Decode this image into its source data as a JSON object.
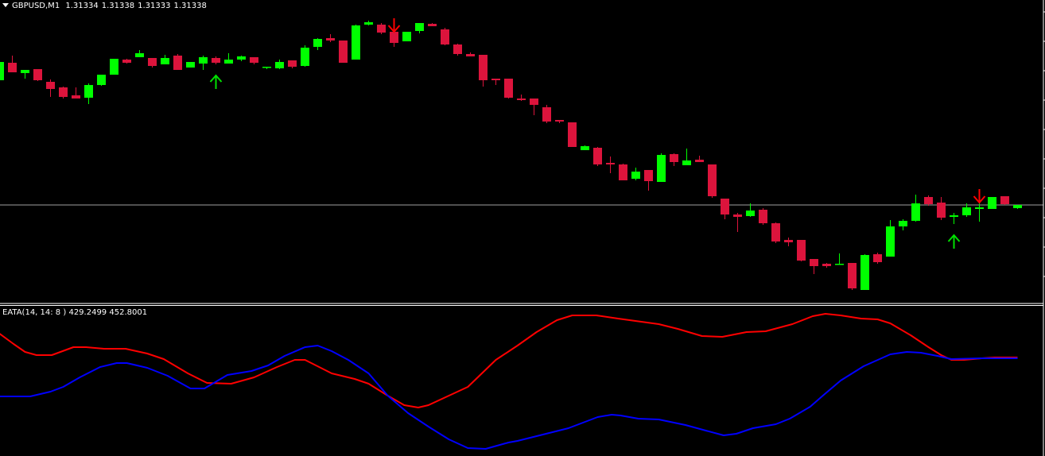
{
  "header": {
    "symbol": "GBPUSD,M1",
    "open": "1.31334",
    "high": "1.31338",
    "low": "1.31333",
    "close": "1.31338"
  },
  "indicator": {
    "label": "EATA(14, 14: 8 )",
    "value1": "429.2499",
    "value2": "452.8001"
  },
  "colors": {
    "background": "#000000",
    "bull": "#00ff00",
    "bear": "#dc143c",
    "buy_arrow": "#00e000",
    "sell_arrow": "#ff0000",
    "price_line": "#a0a0a0",
    "line_red": "#ff0000",
    "line_blue": "#0000ff",
    "border": "#ffffff"
  },
  "chart_data": [
    {
      "type": "candlestick",
      "title": "GBPUSD,M1",
      "current_price": 1.31338,
      "ylim": [
        1.31215,
        1.31596
      ],
      "grid": false,
      "candles_ohlc": [
        [
          1.31495,
          1.31518,
          1.31495,
          1.31518
        ],
        [
          1.31517,
          1.31526,
          1.31505,
          1.31505
        ],
        [
          1.31504,
          1.31508,
          1.31497,
          1.31508
        ],
        [
          1.31509,
          1.31509,
          1.31494,
          1.31495
        ],
        [
          1.31493,
          1.31496,
          1.31474,
          1.31484
        ],
        [
          1.31486,
          1.31487,
          1.31472,
          1.31474
        ],
        [
          1.31476,
          1.31486,
          1.31472,
          1.31472
        ],
        [
          1.31473,
          1.31491,
          1.31465,
          1.31489
        ],
        [
          1.31489,
          1.31502,
          1.31488,
          1.31502
        ],
        [
          1.31502,
          1.31522,
          1.31502,
          1.31522
        ],
        [
          1.31521,
          1.31522,
          1.31516,
          1.31517
        ],
        [
          1.31524,
          1.31533,
          1.31524,
          1.31529
        ],
        [
          1.31523,
          1.31523,
          1.31511,
          1.31513
        ],
        [
          1.31515,
          1.31527,
          1.31515,
          1.31523
        ],
        [
          1.31526,
          1.31528,
          1.31508,
          1.31508
        ],
        [
          1.31511,
          1.31518,
          1.31511,
          1.31518
        ],
        [
          1.31516,
          1.31526,
          1.31508,
          1.31524
        ],
        [
          1.31523,
          1.31525,
          1.31515,
          1.31517
        ],
        [
          1.31516,
          1.31529,
          1.31516,
          1.31521
        ],
        [
          1.31521,
          1.31526,
          1.31519,
          1.31525
        ],
        [
          1.31524,
          1.31524,
          1.31515,
          1.31517
        ],
        [
          1.31511,
          1.31512,
          1.31509,
          1.31512
        ],
        [
          1.3151,
          1.31521,
          1.31509,
          1.31518
        ],
        [
          1.3152,
          1.3152,
          1.3151,
          1.31512
        ],
        [
          1.31513,
          1.31539,
          1.31512,
          1.31536
        ],
        [
          1.31537,
          1.31548,
          1.31533,
          1.31547
        ],
        [
          1.31548,
          1.31553,
          1.31543,
          1.31545
        ],
        [
          1.31545,
          1.31545,
          1.31517,
          1.31517
        ],
        [
          1.31521,
          1.31565,
          1.31521,
          1.31564
        ],
        [
          1.31565,
          1.3157,
          1.31564,
          1.31568
        ],
        [
          1.31565,
          1.31567,
          1.31553,
          1.31555
        ],
        [
          1.31556,
          1.31556,
          1.31537,
          1.31542
        ],
        [
          1.31544,
          1.31556,
          1.31544,
          1.31556
        ],
        [
          1.31557,
          1.31567,
          1.31554,
          1.31567
        ],
        [
          1.31566,
          1.31567,
          1.31563,
          1.31563
        ],
        [
          1.31559,
          1.31561,
          1.31539,
          1.3154
        ],
        [
          1.3154,
          1.31541,
          1.31526,
          1.31528
        ],
        [
          1.31528,
          1.3153,
          1.31525,
          1.31525
        ],
        [
          1.31527,
          1.31527,
          1.31487,
          1.31495
        ],
        [
          1.31497,
          1.31497,
          1.31489,
          1.31495
        ],
        [
          1.31497,
          1.31497,
          1.31472,
          1.31473
        ],
        [
          1.31472,
          1.31477,
          1.31469,
          1.3147
        ],
        [
          1.31472,
          1.31472,
          1.31451,
          1.31464
        ],
        [
          1.31461,
          1.31464,
          1.31441,
          1.31443
        ],
        [
          1.31445,
          1.31445,
          1.31441,
          1.31443
        ],
        [
          1.31442,
          1.31442,
          1.31411,
          1.31411
        ],
        [
          1.31407,
          1.31413,
          1.31407,
          1.31412
        ],
        [
          1.3141,
          1.31411,
          1.31387,
          1.31389
        ],
        [
          1.31391,
          1.31399,
          1.31378,
          1.31389
        ],
        [
          1.31389,
          1.3139,
          1.31369,
          1.31369
        ],
        [
          1.31371,
          1.31385,
          1.31369,
          1.3138
        ],
        [
          1.31382,
          1.31382,
          1.31356,
          1.31368
        ],
        [
          1.31367,
          1.31403,
          1.31367,
          1.31401
        ],
        [
          1.31402,
          1.31403,
          1.31387,
          1.31392
        ],
        [
          1.31388,
          1.31409,
          1.31388,
          1.31394
        ],
        [
          1.31395,
          1.314,
          1.31392,
          1.31392
        ],
        [
          1.31389,
          1.31389,
          1.31347,
          1.31349
        ],
        [
          1.31346,
          1.31346,
          1.3132,
          1.31326
        ],
        [
          1.31326,
          1.31328,
          1.31304,
          1.31323
        ],
        [
          1.31324,
          1.3134,
          1.31323,
          1.31331
        ],
        [
          1.31332,
          1.31334,
          1.31313,
          1.31315
        ],
        [
          1.31315,
          1.31316,
          1.3129,
          1.31292
        ],
        [
          1.31294,
          1.31297,
          1.31286,
          1.31291
        ],
        [
          1.31294,
          1.31294,
          1.31267,
          1.31268
        ],
        [
          1.3127,
          1.3127,
          1.31251,
          1.31261
        ],
        [
          1.31264,
          1.31265,
          1.31259,
          1.31261
        ],
        [
          1.31263,
          1.31277,
          1.31263,
          1.31264
        ],
        [
          1.31265,
          1.31265,
          1.31231,
          1.31233
        ],
        [
          1.31231,
          1.31276,
          1.31231,
          1.31275
        ],
        [
          1.31276,
          1.31278,
          1.31264,
          1.31266
        ],
        [
          1.31273,
          1.31319,
          1.31273,
          1.31311
        ],
        [
          1.31311,
          1.3132,
          1.31306,
          1.31318
        ],
        [
          1.31318,
          1.31351,
          1.31317,
          1.3134
        ],
        [
          1.31348,
          1.3135,
          1.31337,
          1.31339
        ],
        [
          1.31341,
          1.31348,
          1.31319,
          1.31322
        ],
        [
          1.31323,
          1.31328,
          1.31314,
          1.31325
        ],
        [
          1.31325,
          1.3134,
          1.31323,
          1.31335
        ],
        [
          1.31333,
          1.31341,
          1.31317,
          1.31335
        ],
        [
          1.31333,
          1.31348,
          1.31333,
          1.31348
        ],
        [
          1.31349,
          1.31349,
          1.31338,
          1.31339
        ],
        [
          1.31334,
          1.31338,
          1.31333,
          1.31338
        ]
      ],
      "signals": [
        {
          "bar": 17,
          "type": "buy"
        },
        {
          "bar": 31,
          "type": "sell"
        },
        {
          "bar": 75,
          "type": "buy"
        },
        {
          "bar": 77,
          "type": "sell"
        }
      ]
    },
    {
      "type": "line",
      "title": "EATA(14, 14: 8 )",
      "ylim": [
        71,
        635
      ],
      "grid": false,
      "series": [
        {
          "color": "#ff0000",
          "points": [
            [
              0,
              533
            ],
            [
              1.1,
              494
            ],
            [
              2,
              464
            ],
            [
              2.9,
              452
            ],
            [
              4.1,
              452
            ],
            [
              5.8,
              482
            ],
            [
              6.8,
              482
            ],
            [
              8.2,
              476
            ],
            [
              9.9,
              476
            ],
            [
              11.6,
              458
            ],
            [
              12.9,
              437
            ],
            [
              14.8,
              383
            ],
            [
              16.3,
              347
            ],
            [
              18.2,
              344
            ],
            [
              20,
              368
            ],
            [
              21.8,
              407
            ],
            [
              23.2,
              434
            ],
            [
              24,
              434
            ],
            [
              26.1,
              383
            ],
            [
              27.9,
              362
            ],
            [
              29,
              344
            ],
            [
              30.5,
              299
            ],
            [
              31.8,
              263
            ],
            [
              32.9,
              254
            ],
            [
              33.7,
              263
            ],
            [
              36.8,
              332
            ],
            [
              39,
              434
            ],
            [
              40.7,
              488
            ],
            [
              42.2,
              539
            ],
            [
              43.8,
              584
            ],
            [
              45,
              602
            ],
            [
              46.9,
              602
            ],
            [
              48.6,
              590
            ],
            [
              51.8,
              569
            ],
            [
              53.3,
              551
            ],
            [
              55.2,
              524
            ],
            [
              56.8,
              521
            ],
            [
              58.7,
              539
            ],
            [
              60.2,
              542
            ],
            [
              62.3,
              569
            ],
            [
              63.9,
              599
            ],
            [
              64.9,
              608
            ],
            [
              66.1,
              602
            ],
            [
              67.7,
              590
            ],
            [
              69,
              587
            ],
            [
              70,
              572
            ],
            [
              71.6,
              527
            ],
            [
              73,
              482
            ],
            [
              74,
              452
            ],
            [
              74.8,
              434
            ],
            [
              75.8,
              434
            ],
            [
              77.2,
              440
            ],
            [
              78.2,
              443
            ],
            [
              80,
              443
            ]
          ]
        },
        {
          "color": "#0000ff",
          "points": [
            [
              0,
              296
            ],
            [
              2.4,
              296
            ],
            [
              4,
              314
            ],
            [
              5,
              332
            ],
            [
              6.3,
              368
            ],
            [
              7.9,
              407
            ],
            [
              9.2,
              422
            ],
            [
              10,
              422
            ],
            [
              11.6,
              404
            ],
            [
              13.2,
              374
            ],
            [
              15,
              326
            ],
            [
              16.1,
              326
            ],
            [
              17.9,
              377
            ],
            [
              19.8,
              392
            ],
            [
              21.1,
              413
            ],
            [
              22.4,
              449
            ],
            [
              24,
              482
            ],
            [
              25,
              488
            ],
            [
              26.1,
              467
            ],
            [
              27.4,
              434
            ],
            [
              29,
              383
            ],
            [
              30.5,
              299
            ],
            [
              32.1,
              233
            ],
            [
              33.7,
              182
            ],
            [
              35.3,
              134
            ],
            [
              36.8,
              101
            ],
            [
              38.2,
              98
            ],
            [
              40,
              122
            ],
            [
              40.7,
              128
            ],
            [
              44.7,
              176
            ],
            [
              47,
              218
            ],
            [
              48.1,
              227
            ],
            [
              48.8,
              224
            ],
            [
              50.2,
              212
            ],
            [
              51.8,
              209
            ],
            [
              53.9,
              188
            ],
            [
              55.5,
              167
            ],
            [
              56.9,
              149
            ],
            [
              57.9,
              155
            ],
            [
              59.2,
              176
            ],
            [
              61,
              191
            ],
            [
              62.1,
              212
            ],
            [
              63.7,
              257
            ],
            [
              64.7,
              299
            ],
            [
              66.1,
              356
            ],
            [
              67.9,
              410
            ],
            [
              70,
              455
            ],
            [
              71.3,
              464
            ],
            [
              72.4,
              461
            ],
            [
              73.7,
              449
            ],
            [
              74.8,
              437
            ],
            [
              77.2,
              440
            ],
            [
              80,
              440
            ]
          ]
        }
      ]
    }
  ]
}
